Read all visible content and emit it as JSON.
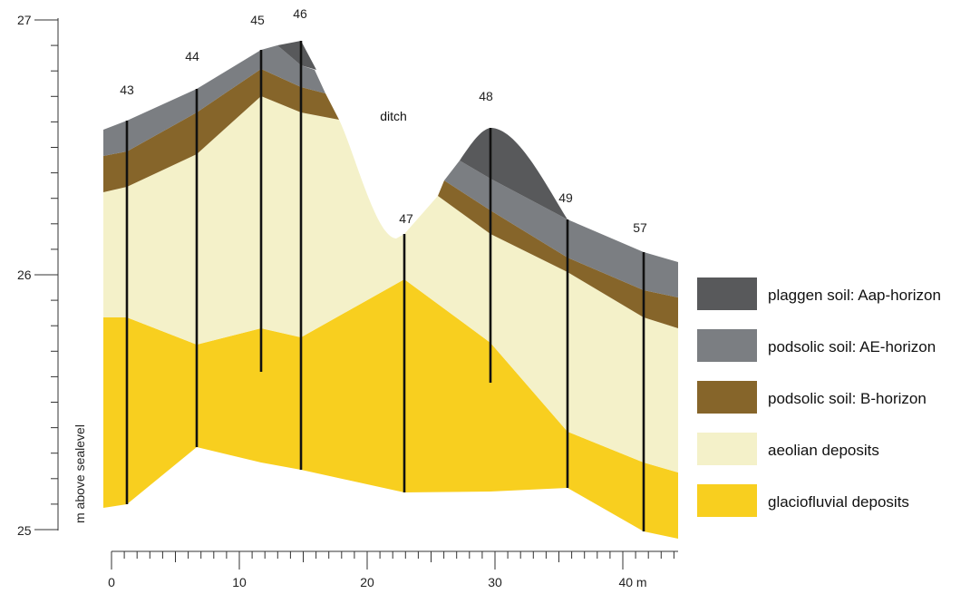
{
  "figure": {
    "y_axis_title": "m above sealevel",
    "ditch_label": "ditch"
  },
  "y_axis": {
    "ticks": [
      "25",
      "26",
      "27"
    ]
  },
  "x_axis": {
    "ticks": [
      "0",
      "10",
      "20",
      "30",
      "40 m"
    ]
  },
  "boreholes": [
    {
      "label": "43"
    },
    {
      "label": "44"
    },
    {
      "label": "45"
    },
    {
      "label": "46"
    },
    {
      "label": "47"
    },
    {
      "label": "48"
    },
    {
      "label": "49"
    },
    {
      "label": "57"
    }
  ],
  "legend": [
    {
      "label": "plaggen soil: Aap-horizon",
      "color": "#58595b"
    },
    {
      "label": "podsolic soil: AE-horizon",
      "color": "#7b7e82"
    },
    {
      "label": "podsolic soil: B-horizon",
      "color": "#86652a"
    },
    {
      "label": "aeolian deposits",
      "color": "#f4f1c9"
    },
    {
      "label": "glaciofluvial deposits",
      "color": "#f8cf1f"
    }
  ],
  "colors": {
    "plaggen": "#58595b",
    "ae": "#7b7e82",
    "b": "#86652a",
    "aeolian": "#f4f1c9",
    "glacio": "#f8cf1f"
  }
}
